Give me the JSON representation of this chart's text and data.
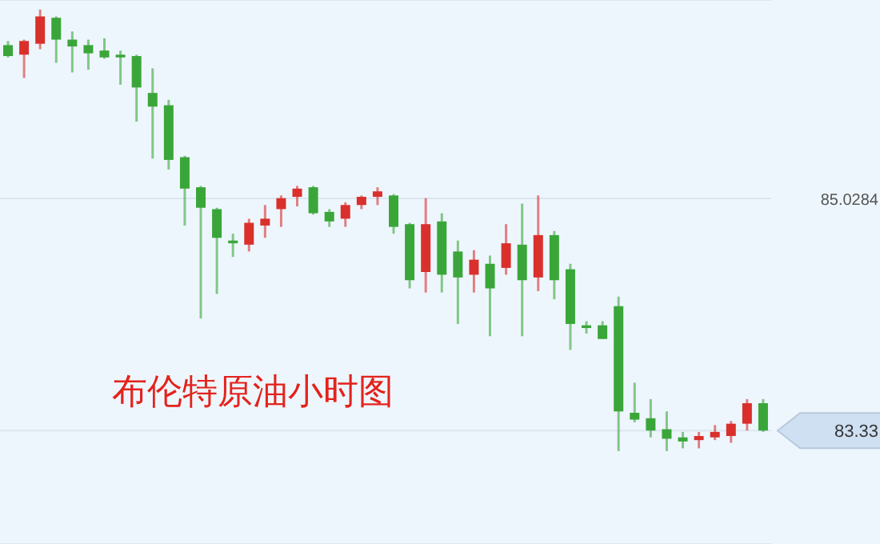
{
  "chart_data": {
    "type": "candlestick",
    "title": "布伦特原油小时图",
    "categories": [
      null,
      null,
      null,
      null,
      null,
      null,
      null,
      null,
      null,
      null,
      null,
      null,
      null,
      null,
      null,
      null,
      null,
      null,
      null,
      null,
      null,
      null,
      null,
      null,
      null,
      null,
      null,
      null,
      null,
      null,
      null,
      null,
      null,
      null,
      null,
      null,
      null,
      null,
      null,
      null,
      null,
      null,
      null,
      null,
      null,
      null,
      null,
      null
    ],
    "ohlc": [
      [
        86.15,
        86.18,
        86.06,
        86.07
      ],
      [
        86.08,
        86.19,
        85.91,
        86.18
      ],
      [
        86.16,
        86.41,
        86.12,
        86.36
      ],
      [
        86.35,
        86.36,
        86.02,
        86.19
      ],
      [
        86.19,
        86.25,
        85.95,
        86.14
      ],
      [
        86.15,
        86.19,
        85.97,
        86.09
      ],
      [
        86.11,
        86.2,
        86.05,
        86.06
      ],
      [
        86.08,
        86.11,
        85.86,
        86.06
      ],
      [
        86.07,
        86.08,
        85.59,
        85.84
      ],
      [
        85.8,
        85.98,
        85.32,
        85.7
      ],
      [
        85.71,
        85.75,
        85.24,
        85.31
      ],
      [
        85.33,
        85.34,
        84.83,
        85.1
      ],
      [
        85.11,
        85.12,
        84.15,
        84.96
      ],
      [
        84.95,
        84.96,
        84.33,
        84.74
      ],
      [
        84.72,
        84.77,
        84.6,
        84.7
      ],
      [
        84.69,
        84.88,
        84.64,
        84.85
      ],
      [
        84.83,
        84.98,
        84.74,
        84.88
      ],
      [
        84.95,
        85.05,
        84.82,
        85.03
      ],
      [
        85.04,
        85.12,
        84.97,
        85.1
      ],
      [
        85.11,
        85.12,
        84.91,
        84.92
      ],
      [
        84.93,
        84.95,
        84.82,
        84.86
      ],
      [
        84.88,
        85.0,
        84.82,
        84.98
      ],
      [
        84.98,
        85.05,
        84.95,
        85.04
      ],
      [
        85.04,
        85.11,
        84.98,
        85.08
      ],
      [
        85.05,
        85.06,
        84.77,
        84.82
      ],
      [
        84.84,
        84.85,
        84.37,
        84.43
      ],
      [
        84.49,
        85.03,
        84.34,
        84.84
      ],
      [
        84.86,
        84.92,
        84.34,
        84.47
      ],
      [
        84.64,
        84.72,
        84.11,
        84.45
      ],
      [
        84.47,
        84.65,
        84.34,
        84.58
      ],
      [
        84.55,
        84.61,
        84.02,
        84.37
      ],
      [
        84.52,
        84.84,
        84.47,
        84.7
      ],
      [
        84.69,
        84.99,
        84.02,
        84.43
      ],
      [
        84.45,
        85.05,
        84.35,
        84.76
      ],
      [
        84.76,
        84.79,
        84.29,
        84.43
      ],
      [
        84.51,
        84.55,
        83.92,
        84.11
      ],
      [
        84.1,
        84.13,
        84.04,
        84.08
      ],
      [
        84.1,
        84.13,
        84.0,
        84.0
      ],
      [
        84.24,
        84.31,
        83.18,
        83.47
      ],
      [
        83.46,
        83.68,
        83.39,
        83.41
      ],
      [
        83.42,
        83.56,
        83.28,
        83.33
      ],
      [
        83.34,
        83.47,
        83.18,
        83.27
      ],
      [
        83.28,
        83.32,
        83.2,
        83.25
      ],
      [
        83.26,
        83.32,
        83.2,
        83.29
      ],
      [
        83.28,
        83.37,
        83.26,
        83.32
      ],
      [
        83.29,
        83.4,
        83.24,
        83.38
      ],
      [
        83.38,
        83.56,
        83.33,
        83.53
      ],
      [
        83.53,
        83.56,
        83.32,
        83.33
      ]
    ],
    "colors": [
      "#3aa63a",
      "#d9302c",
      "#d9302c",
      "#3aa63a",
      "#3aa63a",
      "#3aa63a",
      "#3aa63a",
      "#3aa63a",
      "#3aa63a",
      "#3aa63a",
      "#3aa63a",
      "#3aa63a",
      "#3aa63a",
      "#3aa63a",
      "#3aa63a",
      "#d9302c",
      "#d9302c",
      "#d9302c",
      "#d9302c",
      "#3aa63a",
      "#3aa63a",
      "#d9302c",
      "#d9302c",
      "#d9302c",
      "#3aa63a",
      "#3aa63a",
      "#d9302c",
      "#3aa63a",
      "#3aa63a",
      "#d9302c",
      "#3aa63a",
      "#d9302c",
      "#3aa63a",
      "#d9302c",
      "#3aa63a",
      "#3aa63a",
      "#3aa63a",
      "#3aa63a",
      "#3aa63a",
      "#3aa63a",
      "#3aa63a",
      "#3aa63a",
      "#3aa63a",
      "#d9302c",
      "#d9302c",
      "#d9302c",
      "#d9302c",
      "#3aa63a"
    ],
    "ylim": [
      82.5,
      86.48
    ],
    "yticks": [
      85.0284,
      83.33
    ],
    "grid": "y",
    "tick_labels": "y"
  }
}
